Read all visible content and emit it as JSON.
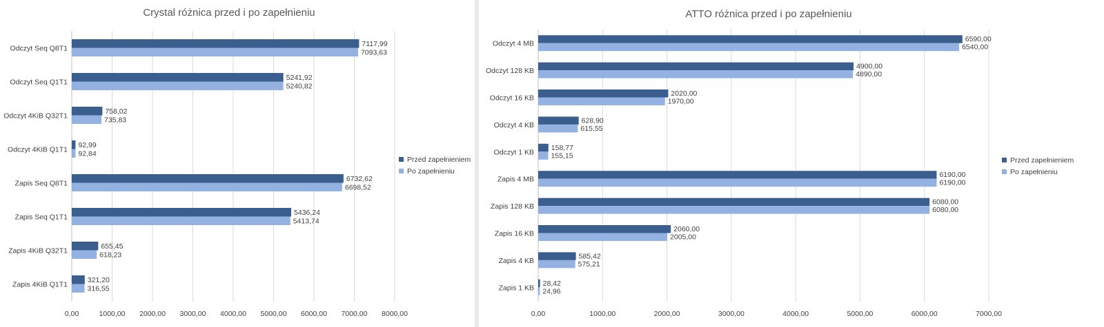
{
  "colors": {
    "series_1": "#3a5f8f",
    "series_2": "#93b2e1"
  },
  "chart_data": [
    {
      "type": "bar",
      "orientation": "horizontal",
      "title": "Crystal różnica przed i po zapełnieniu",
      "categories": [
        "Odczyt Seq Q8T1",
        "Odczyt Seq Q1T1",
        "Odczyt 4KiB Q32T1",
        "Odczyt 4KiB Q1T1",
        "Zapis Seq Q8T1",
        "Zapis Seq Q1T1",
        "Zapis 4KiB Q32T1",
        "Zapis 4KiB Q1T1"
      ],
      "series": [
        {
          "name": "Przed zapełnieniem",
          "values": [
            7117.99,
            5241.92,
            758.02,
            92.99,
            6732.62,
            5436.24,
            655.45,
            321.2
          ],
          "labels": [
            "7117,99",
            "5241,92",
            "758,02",
            "92,99",
            "6732,62",
            "5436,24",
            "655,45",
            "321,20"
          ]
        },
        {
          "name": "Po zapełnieniu",
          "values": [
            7093.63,
            5240.82,
            735.83,
            92.84,
            6698.52,
            5413.74,
            618.23,
            316.55
          ],
          "labels": [
            "7093,63",
            "5240,82",
            "735,83",
            "92,84",
            "6698,52",
            "5413,74",
            "618,23",
            "316,55"
          ]
        }
      ],
      "xlim": [
        0,
        8000
      ],
      "x_ticks": [
        0,
        1000,
        2000,
        3000,
        4000,
        5000,
        6000,
        7000,
        8000
      ],
      "x_tick_labels": [
        "0,00",
        "1000,00",
        "2000,00",
        "3000,00",
        "4000,00",
        "5000,00",
        "6000,00",
        "7000,00",
        "8000,00"
      ],
      "grid": true,
      "legend": "right"
    },
    {
      "type": "bar",
      "orientation": "horizontal",
      "title": "ATTO różnica przed i po zapełnieniu",
      "categories": [
        "Odczyt 4 MB",
        "Odczyt 128 KB",
        "Odczyt 16 KB",
        "Odczyt 4 KB",
        "Odczyt 1 KB",
        "Zapis 4 MB",
        "Zapis 128 KB",
        "Zapis 16 KB",
        "Zapis 4 KB",
        "Zapis 1 KB"
      ],
      "series": [
        {
          "name": "Przed zapełnieniem",
          "values": [
            6590.0,
            4900.0,
            2020.0,
            628.9,
            158.77,
            6190.0,
            6080.0,
            2060.0,
            585.42,
            28.42
          ],
          "labels": [
            "6590,00",
            "4900,00",
            "2020,00",
            "628,90",
            "158,77",
            "6190,00",
            "6080,00",
            "2060,00",
            "585,42",
            "28,42"
          ]
        },
        {
          "name": "Po zapełnieniu",
          "values": [
            6540.0,
            4890.0,
            1970.0,
            615.55,
            155.15,
            6190.0,
            6080.0,
            2005.0,
            575.21,
            24.96
          ],
          "labels": [
            "6540,00",
            "4890,00",
            "1970,00",
            "615,55",
            "155,15",
            "6190,00",
            "6080,00",
            "2005,00",
            "575,21",
            "24,96"
          ]
        }
      ],
      "xlim": [
        0,
        7000
      ],
      "x_ticks": [
        0,
        1000,
        2000,
        3000,
        4000,
        5000,
        6000,
        7000
      ],
      "x_tick_labels": [
        "0,00",
        "1000,00",
        "2000,00",
        "3000,00",
        "4000,00",
        "5000,00",
        "6000,00",
        "7000,00"
      ],
      "grid": true,
      "legend": "right"
    }
  ]
}
